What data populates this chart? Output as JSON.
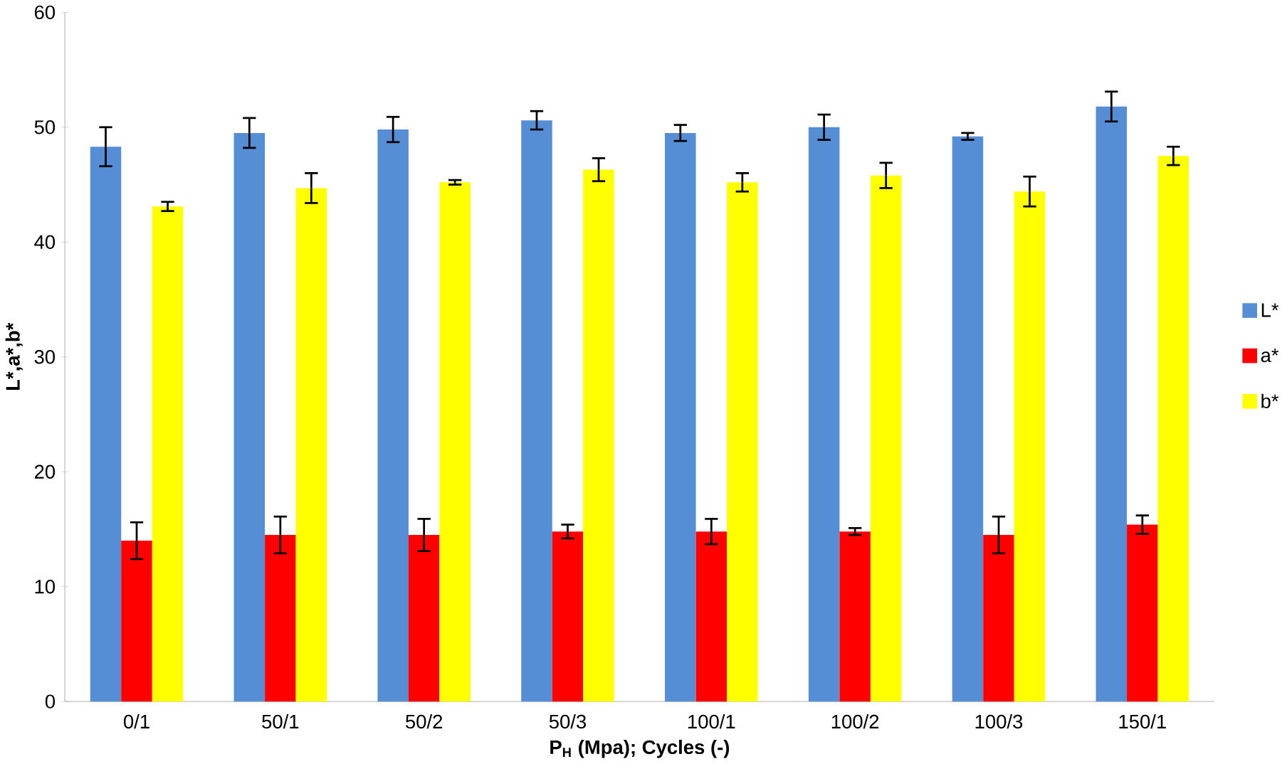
{
  "chart_data": {
    "type": "bar",
    "xlabel": "P$_{H}$ (Mpa); Cycles (-)",
    "ylabel": "L*,a*,b*",
    "categories": [
      "0/1",
      "50/1",
      "50/2",
      "50/3",
      "100/1",
      "100/2",
      "100/3",
      "150/1"
    ],
    "series": [
      {
        "name": "L*",
        "color": "#558ed5",
        "values": [
          48.3,
          49.5,
          49.8,
          50.6,
          49.5,
          50.0,
          49.2,
          51.8
        ],
        "errors": [
          1.7,
          1.3,
          1.1,
          0.8,
          0.7,
          1.1,
          0.3,
          1.3
        ]
      },
      {
        "name": "a*",
        "color": "#ff0000",
        "values": [
          14.0,
          14.5,
          14.5,
          14.8,
          14.8,
          14.8,
          14.5,
          15.4
        ],
        "errors": [
          1.6,
          1.6,
          1.4,
          0.6,
          1.1,
          0.3,
          1.6,
          0.8
        ]
      },
      {
        "name": "b*",
        "color": "#ffff00",
        "values": [
          43.1,
          44.7,
          45.2,
          46.3,
          45.2,
          45.8,
          44.4,
          47.5
        ],
        "errors": [
          0.4,
          1.3,
          0.2,
          1.0,
          0.8,
          1.1,
          1.3,
          0.8
        ]
      }
    ],
    "ylim": [
      0,
      60
    ],
    "yticks": [
      0,
      10,
      20,
      30,
      40,
      50,
      60
    ],
    "grid": false,
    "legend": "right"
  }
}
